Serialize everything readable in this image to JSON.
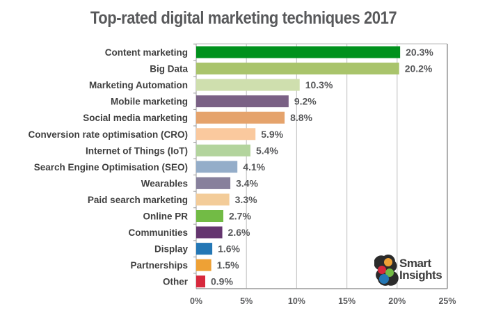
{
  "chart_data": {
    "type": "bar",
    "orientation": "horizontal",
    "title": "Top-rated digital marketing techniques 2017",
    "categories": [
      "Content marketing",
      "Big Data",
      "Marketing Automation",
      "Mobile marketing",
      "Social media marketing",
      "Conversion rate optimisation (CRO)",
      "Internet of Things (IoT)",
      "Search Engine Optimisation (SEO)",
      "Wearables",
      "Paid search marketing",
      "Online PR",
      "Communities",
      "Display",
      "Partnerships",
      "Other"
    ],
    "values": [
      20.3,
      20.2,
      10.3,
      9.2,
      8.8,
      5.9,
      5.4,
      4.1,
      3.4,
      3.3,
      2.7,
      2.6,
      1.6,
      1.5,
      0.9
    ],
    "value_labels": [
      "20.3%",
      "20.2%",
      "10.3%",
      "9.2%",
      "8.8%",
      "5.9%",
      "5.4%",
      "4.1%",
      "3.4%",
      "3.3%",
      "2.7%",
      "2.6%",
      "1.6%",
      "1.5%",
      "0.9%"
    ],
    "colors": [
      "#00911c",
      "#a9c46b",
      "#cfdfae",
      "#7a6185",
      "#e5a36c",
      "#fac99e",
      "#b3d49d",
      "#94adc9",
      "#87809c",
      "#f3cc99",
      "#72bb45",
      "#64356f",
      "#2477b5",
      "#eea135",
      "#d7283c"
    ],
    "xlim": [
      0,
      25
    ],
    "xticks": [
      0,
      5,
      10,
      15,
      20,
      25
    ],
    "xtick_labels": [
      "0%",
      "5%",
      "10%",
      "15%",
      "20%",
      "25%"
    ],
    "grid": true,
    "xlabel": "",
    "ylabel": ""
  },
  "logo": {
    "text_line1": "Smart",
    "text_line2": "Insights"
  }
}
